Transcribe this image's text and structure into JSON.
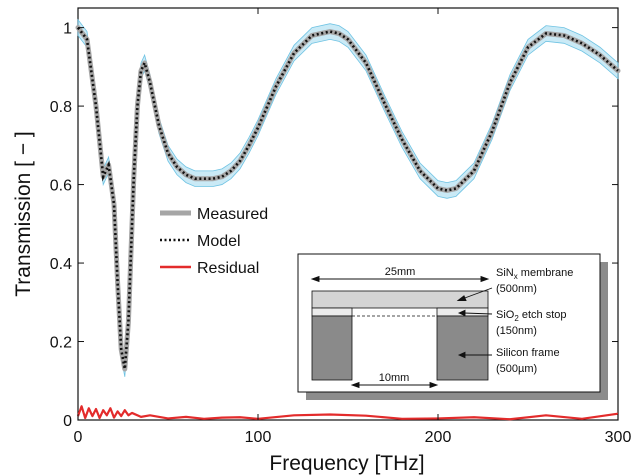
{
  "chart_data": {
    "type": "line",
    "xlabel": "Frequency [THz]",
    "ylabel": "Transmission [ − ]",
    "xlim": [
      0,
      300
    ],
    "ylim": [
      0,
      1.05
    ],
    "xticks": [
      "0",
      "100",
      "200",
      "300"
    ],
    "yticks": [
      "0",
      "0.2",
      "0.4",
      "0.6",
      "0.8",
      "1"
    ],
    "grid": false,
    "legend_position": "center-left",
    "series": [
      {
        "name": "Measured",
        "color": "#a6a6a6",
        "band_color": "#9fd9ef",
        "x": [
          0,
          5,
          10,
          14,
          17,
          20,
          22,
          24,
          26,
          28,
          31,
          33,
          35,
          37,
          40,
          45,
          50,
          55,
          60,
          65,
          70,
          75,
          80,
          85,
          90,
          95,
          100,
          110,
          120,
          130,
          140,
          145,
          150,
          160,
          170,
          180,
          190,
          200,
          205,
          210,
          220,
          230,
          240,
          250,
          260,
          270,
          280,
          290,
          300
        ],
        "values": [
          1.0,
          0.97,
          0.8,
          0.62,
          0.65,
          0.55,
          0.35,
          0.18,
          0.13,
          0.25,
          0.62,
          0.8,
          0.89,
          0.91,
          0.86,
          0.75,
          0.68,
          0.645,
          0.625,
          0.615,
          0.615,
          0.615,
          0.62,
          0.635,
          0.66,
          0.7,
          0.745,
          0.85,
          0.935,
          0.98,
          0.99,
          0.985,
          0.97,
          0.91,
          0.81,
          0.715,
          0.635,
          0.59,
          0.585,
          0.59,
          0.635,
          0.735,
          0.86,
          0.95,
          0.985,
          0.98,
          0.96,
          0.93,
          0.89
        ]
      },
      {
        "name": "Model",
        "color": "#111111",
        "x": [
          0,
          5,
          10,
          14,
          17,
          20,
          22,
          24,
          26,
          28,
          31,
          33,
          35,
          37,
          40,
          45,
          50,
          55,
          60,
          65,
          70,
          75,
          80,
          85,
          90,
          95,
          100,
          110,
          120,
          130,
          140,
          145,
          150,
          160,
          170,
          180,
          190,
          200,
          205,
          210,
          220,
          230,
          240,
          250,
          260,
          270,
          280,
          290,
          300
        ],
        "values": [
          1.0,
          0.97,
          0.8,
          0.62,
          0.65,
          0.55,
          0.35,
          0.18,
          0.13,
          0.25,
          0.62,
          0.8,
          0.89,
          0.91,
          0.86,
          0.75,
          0.68,
          0.645,
          0.625,
          0.615,
          0.615,
          0.615,
          0.62,
          0.635,
          0.66,
          0.7,
          0.745,
          0.85,
          0.935,
          0.98,
          0.99,
          0.985,
          0.97,
          0.91,
          0.81,
          0.715,
          0.635,
          0.59,
          0.585,
          0.59,
          0.635,
          0.735,
          0.86,
          0.95,
          0.985,
          0.98,
          0.96,
          0.93,
          0.89
        ]
      },
      {
        "name": "Residual",
        "color": "#e32b2b",
        "x": [
          0,
          2,
          4,
          6,
          8,
          10,
          12,
          14,
          16,
          18,
          20,
          22,
          24,
          26,
          28,
          30,
          35,
          40,
          50,
          60,
          70,
          80,
          90,
          100,
          120,
          140,
          160,
          180,
          200,
          220,
          240,
          260,
          280,
          300
        ],
        "values": [
          0.01,
          0.035,
          0.005,
          0.03,
          0.01,
          0.028,
          0.005,
          0.025,
          0.012,
          0.03,
          0.006,
          0.022,
          0.01,
          0.025,
          0.012,
          0.018,
          0.008,
          0.012,
          0.004,
          0.008,
          0.003,
          0.006,
          0.007,
          0.003,
          0.012,
          0.014,
          0.011,
          0.003,
          0.004,
          0.007,
          0.002,
          0.012,
          0.003,
          0.016
        ]
      }
    ],
    "legend": [
      "Measured",
      "Model",
      "Residual"
    ],
    "inset": {
      "dim_top": "25mm",
      "dim_bottom": "10mm",
      "membrane_label": "SiN",
      "membrane_sub": "x",
      "membrane_tail": " membrane",
      "membrane_thickness": "(500nm)",
      "etch_label": "SiO",
      "etch_sub": "2",
      "etch_tail": " etch stop",
      "etch_thickness": "(150nm)",
      "frame_label": "Silicon frame",
      "frame_thickness": "(500µm)"
    }
  }
}
